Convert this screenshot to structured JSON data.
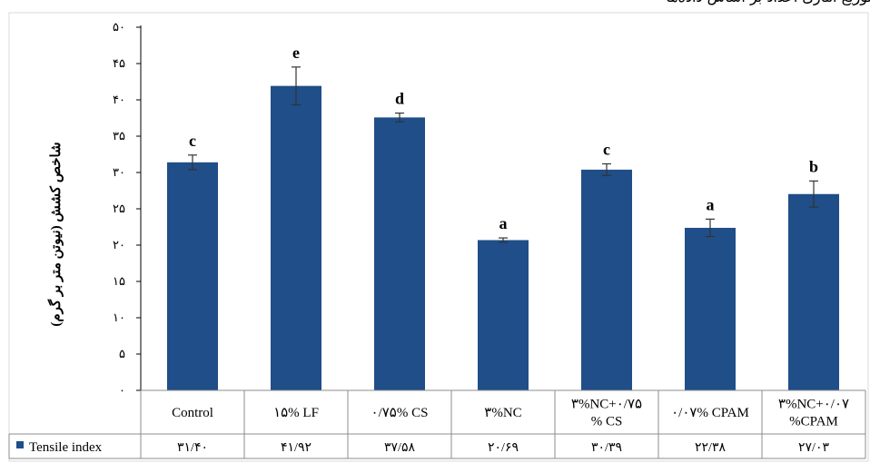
{
  "header": {
    "caption_fragment": "توزیع آماری اعداد بر اساس داده‌ها"
  },
  "colors": {
    "bar": "#1f4e89",
    "axis": "#000000",
    "table_border": "#8c8c8c"
  },
  "chart_data": {
    "type": "bar",
    "title": "",
    "xlabel": "",
    "ylabel": "شاخص کشش (نیوتن متر بر گرم)",
    "ylim": [
      0,
      50
    ],
    "ytick_values": [
      0,
      5,
      10,
      15,
      20,
      25,
      30,
      35,
      40,
      45,
      50
    ],
    "ytick_labels": [
      "۰",
      "۵",
      "۱۰",
      "۱۵",
      "۲۰",
      "۲۵",
      "۳۰",
      "۳۵",
      "۴۰",
      "۴۵",
      "۵۰"
    ],
    "grid": false,
    "legend": "table-left",
    "categories": [
      [
        "Control"
      ],
      [
        "۱۵% LF"
      ],
      [
        "۰/۷۵% CS"
      ],
      [
        "۳%NC"
      ],
      [
        "۳%NC+۰/۷۵",
        "% CS"
      ],
      [
        "۰/۰۷% CPAM"
      ],
      [
        "۳%NC+۰/۰۷",
        "%CPAM"
      ]
    ],
    "series": [
      {
        "name": "Tensile index",
        "values": [
          31.4,
          41.92,
          37.58,
          20.69,
          30.39,
          22.38,
          27.03
        ],
        "value_labels": [
          "۳۱/۴۰",
          "۴۱/۹۲",
          "۳۷/۵۸",
          "۲۰/۶۹",
          "۳۰/۳۹",
          "۲۲/۳۸",
          "۲۷/۰۳"
        ],
        "errors": [
          1.0,
          2.6,
          0.6,
          0.3,
          0.8,
          1.2,
          1.8
        ],
        "significance_letters": [
          "c",
          "e",
          "d",
          "a",
          "c",
          "a",
          "b"
        ]
      }
    ]
  }
}
